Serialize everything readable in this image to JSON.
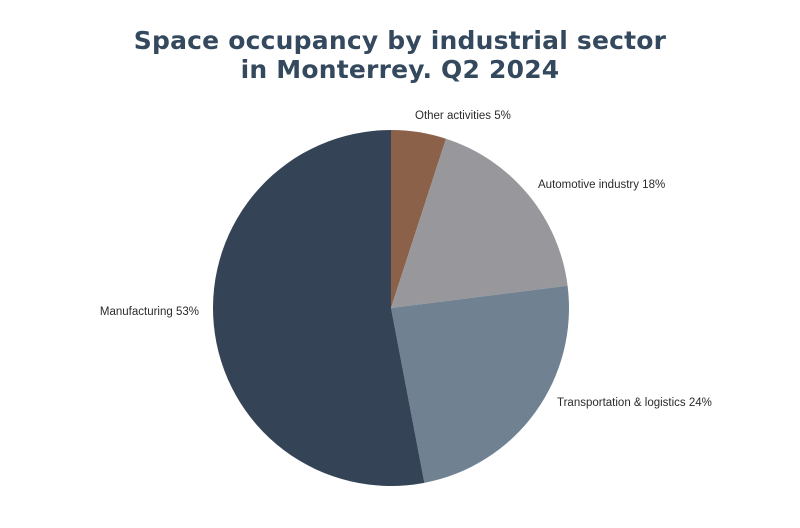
{
  "chart_data": {
    "type": "pie",
    "title_lines": [
      "Space occupancy by industrial sector",
      "in Monterrey. Q2 2024"
    ],
    "slices": [
      {
        "name": "Other activities",
        "value": 5,
        "label": "Other activities 5%",
        "color": "#8b6249"
      },
      {
        "name": "Automotive industry",
        "value": 18,
        "label": "Automotive industry 18%",
        "color": "#98989c"
      },
      {
        "name": "Transportation & logistics",
        "value": 24,
        "label": "Transportation & logistics 24%",
        "color": "#708191"
      },
      {
        "name": "Manufacturing",
        "value": 53,
        "label": "Manufacturing 53%",
        "color": "#344456"
      }
    ],
    "start": "top",
    "direction": "clockwise",
    "legend": "none",
    "title_color": "#34495e"
  }
}
